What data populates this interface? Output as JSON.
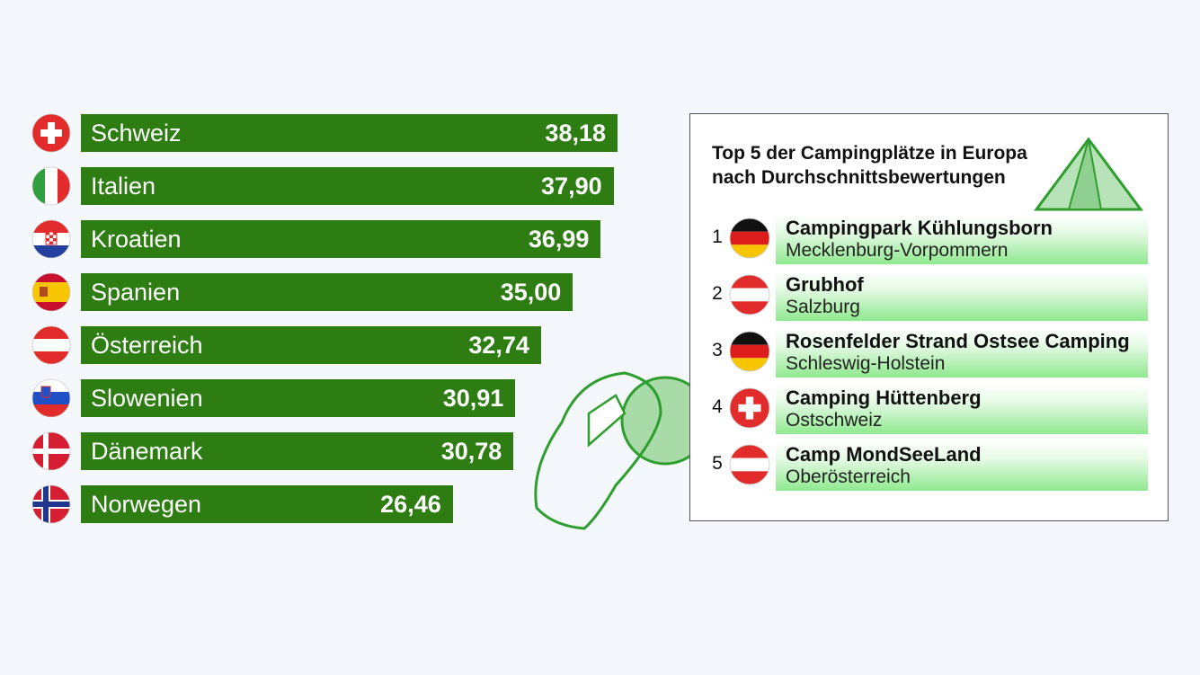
{
  "chart_data": {
    "type": "bar",
    "orientation": "horizontal",
    "categories": [
      "Schweiz",
      "Italien",
      "Kroatien",
      "Spanien",
      "Österreich",
      "Slowenien",
      "Dänemark",
      "Norwegen"
    ],
    "values": [
      38.18,
      37.9,
      36.99,
      35.0,
      32.74,
      30.91,
      30.78,
      26.46
    ],
    "value_labels": [
      "38,18",
      "37,90",
      "36,99",
      "35,00",
      "32,74",
      "30,91",
      "30,78",
      "26,46"
    ],
    "flags": [
      "switzerland-flag-icon",
      "italy-flag-icon",
      "croatia-flag-icon",
      "spain-flag-icon",
      "austria-flag-icon",
      "slovenia-flag-icon",
      "denmark-flag-icon",
      "norway-flag-icon"
    ],
    "bar_color": "#2e7d12",
    "title": "",
    "xlabel": "",
    "ylabel": "",
    "grid": false
  },
  "top_list": {
    "title_line1": "Top 5 der Campingplätze in Europa",
    "title_line2": "nach Durchschnittsbewertungen",
    "icon": "tent-icon",
    "items": [
      {
        "rank": "1",
        "name": "Campingpark Kühlungsborn",
        "region": "Mecklenburg-Vorpommern",
        "flag": "germany-flag-icon"
      },
      {
        "rank": "2",
        "name": "Grubhof",
        "region": "Salzburg",
        "flag": "austria-flag-icon"
      },
      {
        "rank": "3",
        "name": "Rosenfelder Strand Ostsee Camping",
        "region": "Schleswig-Holstein",
        "flag": "germany-flag-icon"
      },
      {
        "rank": "4",
        "name": "Camping Hüttenberg",
        "region": "Ostschweiz",
        "flag": "switzerland-flag-icon"
      },
      {
        "rank": "5",
        "name": "Camp MondSeeLand",
        "region": "Oberösterreich",
        "flag": "austria-flag-icon"
      }
    ]
  },
  "decoration": {
    "icon": "map-pin-outline-icon",
    "accent": "#2e9e2e"
  }
}
